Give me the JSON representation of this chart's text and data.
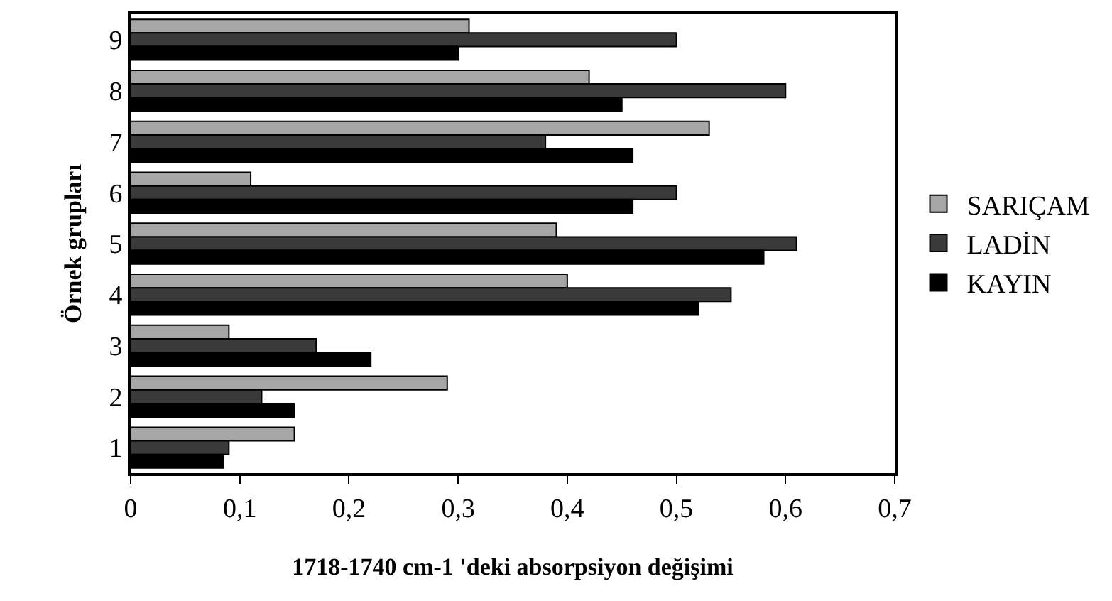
{
  "chart_data": {
    "type": "bar",
    "orientation": "horizontal",
    "xlabel": "1718-1740 cm-1 'deki absorpsiyon değişimi",
    "ylabel": "Örnek grupları",
    "categories": [
      "9",
      "8",
      "7",
      "6",
      "5",
      "4",
      "3",
      "2",
      "1"
    ],
    "series": [
      {
        "name": "KAYIN",
        "color": "#000000",
        "values": [
          0.3,
          0.45,
          0.46,
          0.46,
          0.58,
          0.52,
          0.22,
          0.15,
          0.085
        ]
      },
      {
        "name": "LADİN",
        "color": "#3a3a3a",
        "values": [
          0.5,
          0.6,
          0.38,
          0.5,
          0.61,
          0.55,
          0.17,
          0.12,
          0.09
        ]
      },
      {
        "name": "SARIÇAM",
        "color": "#a6a6a6",
        "values": [
          0.31,
          0.42,
          0.53,
          0.11,
          0.39,
          0.4,
          0.09,
          0.29,
          0.15
        ]
      }
    ],
    "xlim": [
      0,
      0.7
    ],
    "xticks": [
      0,
      {
        "value": 0.1,
        "label": "0,1"
      },
      {
        "value": 0.2,
        "label": "0,2"
      },
      {
        "value": 0.3,
        "label": "0,3"
      },
      {
        "value": 0.4,
        "label": "0,4"
      },
      {
        "value": 0.5,
        "label": "0,5"
      },
      {
        "value": 0.6,
        "label": "0,6"
      },
      {
        "value": 0.7,
        "label": "0,7"
      }
    ],
    "grid": false,
    "legend": "right"
  }
}
